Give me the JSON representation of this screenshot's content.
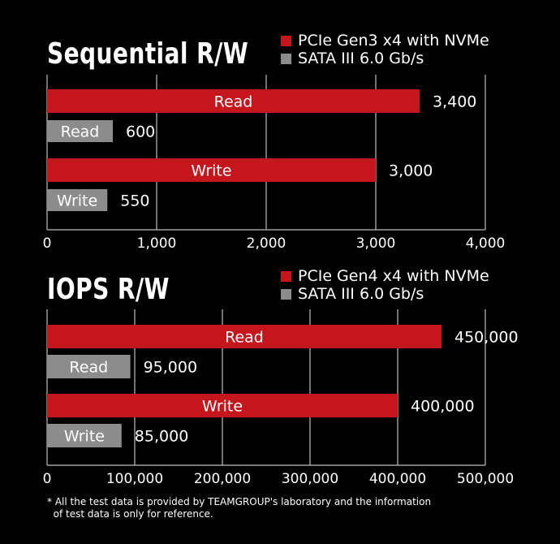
{
  "colors": {
    "nvme": "#c4161c",
    "sata": "#8c8c8c",
    "grid": "#bdbdbd"
  },
  "chart_data": [
    {
      "type": "bar",
      "title": "Sequential R/W",
      "legend": [
        "PCIe Gen3 x4 with NVMe",
        "SATA III 6.0 Gb/s"
      ],
      "categories": [
        "Read",
        "Read",
        "Write",
        "Write"
      ],
      "series_of_bar": [
        "PCIe Gen3 x4 with NVMe",
        "SATA III 6.0 Gb/s",
        "PCIe Gen3 x4 with NVMe",
        "SATA III 6.0 Gb/s"
      ],
      "values": [
        3400,
        600,
        3000,
        550
      ],
      "value_labels": [
        "3,400",
        "600",
        "3,000",
        "550"
      ],
      "xlim": [
        0,
        4000
      ],
      "ticks": [
        0,
        1000,
        2000,
        3000,
        4000
      ],
      "tick_labels": [
        "0",
        "1,000",
        "2,000",
        "3,000",
        "4,000"
      ],
      "grid": true,
      "legend_position": "top-right"
    },
    {
      "type": "bar",
      "title": "IOPS R/W",
      "legend": [
        "PCIe Gen4 x4 with NVMe",
        "SATA III 6.0 Gb/s"
      ],
      "categories": [
        "Read",
        "Read",
        "Write",
        "Write"
      ],
      "series_of_bar": [
        "PCIe Gen4 x4 with NVMe",
        "SATA III 6.0 Gb/s",
        "PCIe Gen4 x4 with NVMe",
        "SATA III 6.0 Gb/s"
      ],
      "values": [
        450000,
        95000,
        400000,
        85000
      ],
      "value_labels": [
        "450,000",
        "95,000",
        "400,000",
        "85,000"
      ],
      "xlim": [
        0,
        500000
      ],
      "ticks": [
        0,
        100000,
        200000,
        300000,
        400000,
        500000
      ],
      "tick_labels": [
        "0",
        "100,000",
        "200,000",
        "300,000",
        "400,000",
        "500,000"
      ],
      "grid": true,
      "legend_position": "top-right"
    }
  ],
  "footnote": "* All the test data is provided by TEAMGROUP's laboratory and the information\n  of test data is only for reference."
}
